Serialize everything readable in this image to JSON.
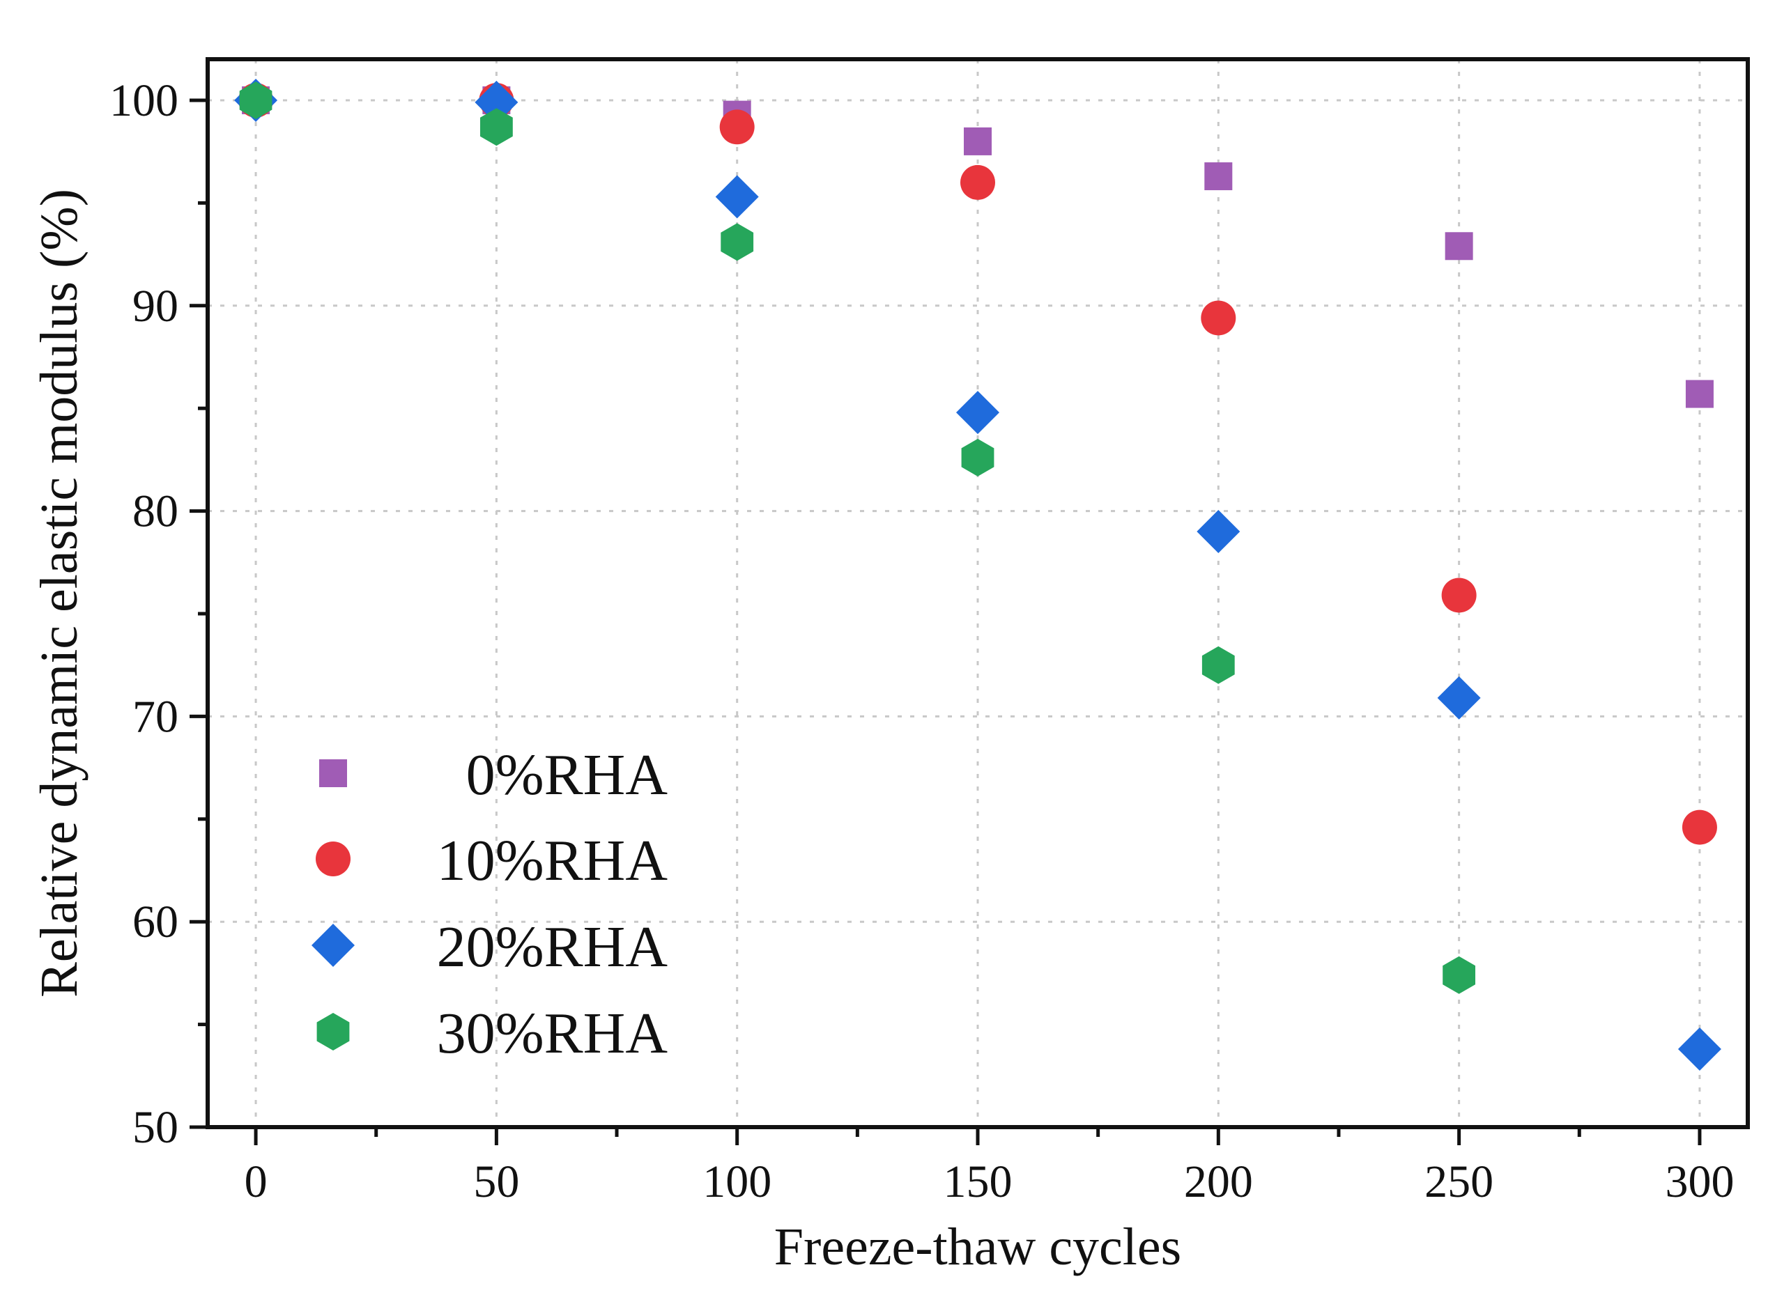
{
  "chart_data": {
    "type": "scatter",
    "title": "",
    "xlabel": "Freeze-thaw cycles",
    "ylabel": "Relative dynamic elastic modulus (%)",
    "xlim": [
      -10,
      310
    ],
    "ylim": [
      50,
      102
    ],
    "x_major_ticks": [
      0,
      50,
      100,
      150,
      200,
      250,
      300
    ],
    "x_minor_ticks": [
      25,
      75,
      125,
      175,
      225,
      275
    ],
    "y_major_ticks": [
      50,
      60,
      70,
      80,
      90,
      100
    ],
    "y_minor_ticks": [
      55,
      65,
      75,
      85,
      95
    ],
    "x_tick_labels": [
      "0",
      "50",
      "100",
      "150",
      "200",
      "250",
      "300"
    ],
    "y_tick_labels": [
      "50",
      "60",
      "70",
      "80",
      "90",
      "100"
    ],
    "grid": true,
    "legend_position": "bottom-left",
    "series": [
      {
        "name": "0%RHA",
        "marker": "square",
        "color": "#a05cb5",
        "x": [
          0,
          50,
          100,
          150,
          200,
          250,
          300
        ],
        "y": [
          100,
          100,
          99.3,
          98.0,
          96.3,
          92.9,
          85.7
        ]
      },
      {
        "name": "10%RHA",
        "marker": "circle",
        "color": "#e8353c",
        "x": [
          0,
          50,
          100,
          150,
          200,
          250,
          300
        ],
        "y": [
          100,
          100,
          98.7,
          96.0,
          89.4,
          75.9,
          64.6
        ]
      },
      {
        "name": "20%RHA",
        "marker": "diamond",
        "color": "#1f6bdc",
        "x": [
          0,
          50,
          100,
          150,
          200,
          250,
          300
        ],
        "y": [
          100,
          99.9,
          95.3,
          84.8,
          79.0,
          70.9,
          53.8
        ]
      },
      {
        "name": "30%RHA",
        "marker": "hexagon",
        "color": "#26a65b",
        "x": [
          0,
          50,
          100,
          150,
          200,
          250,
          300
        ],
        "y": [
          100,
          98.7,
          93.1,
          82.6,
          72.5,
          57.4,
          null
        ]
      }
    ]
  }
}
